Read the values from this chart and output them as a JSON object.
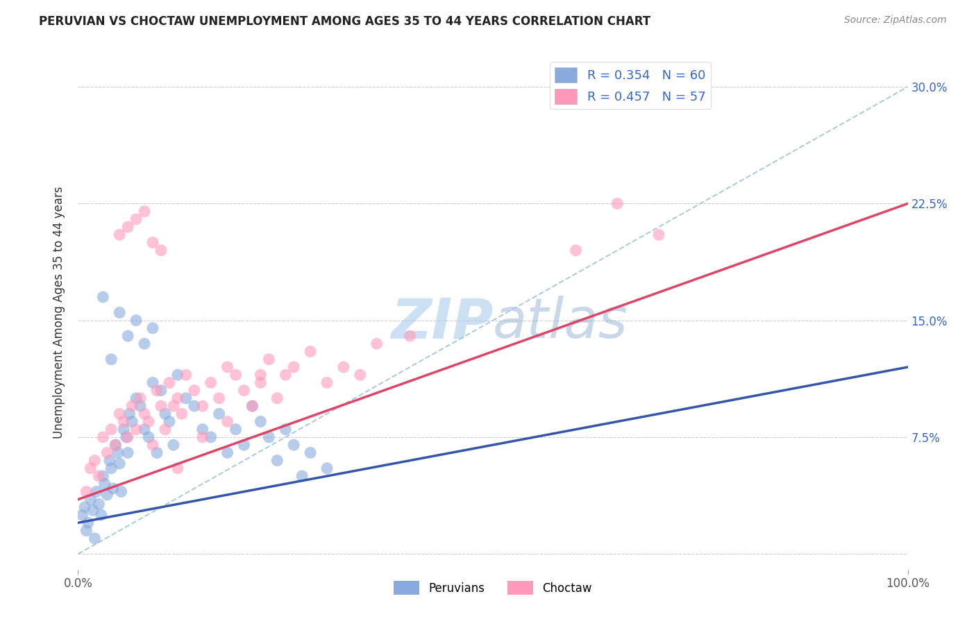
{
  "title": "PERUVIAN VS CHOCTAW UNEMPLOYMENT AMONG AGES 35 TO 44 YEARS CORRELATION CHART",
  "source": "Source: ZipAtlas.com",
  "ylabel": "Unemployment Among Ages 35 to 44 years",
  "xlim": [
    0,
    100
  ],
  "ylim": [
    -1,
    32
  ],
  "peruvian_color": "#88aadd",
  "choctaw_color": "#ff99bb",
  "peruvian_R": 0.354,
  "peruvian_N": 60,
  "choctaw_R": 0.457,
  "choctaw_N": 57,
  "peruvian_line_color": "#3355aa",
  "choctaw_line_color": "#dd4466",
  "diagonal_color": "#aaccdd",
  "watermark_color": "#aaccee",
  "legend_color": "#3366cc",
  "ytick_color": "#3366cc",
  "grid_color": "#cccccc",
  "peruvian_x": [
    0.5,
    0.8,
    1.0,
    1.2,
    1.5,
    1.8,
    2.0,
    2.2,
    2.5,
    2.8,
    3.0,
    3.2,
    3.5,
    3.8,
    4.0,
    4.2,
    4.5,
    4.8,
    5.0,
    5.2,
    5.5,
    5.8,
    6.0,
    6.2,
    6.5,
    7.0,
    7.5,
    8.0,
    8.5,
    9.0,
    9.5,
    10.0,
    10.5,
    11.0,
    11.5,
    12.0,
    13.0,
    14.0,
    15.0,
    16.0,
    17.0,
    18.0,
    19.0,
    20.0,
    21.0,
    22.0,
    23.0,
    24.0,
    25.0,
    26.0,
    27.0,
    28.0,
    30.0,
    4.0,
    6.0,
    8.0,
    5.0,
    7.0,
    3.0,
    9.0
  ],
  "peruvian_y": [
    2.5,
    3.0,
    1.5,
    2.0,
    3.5,
    2.8,
    1.0,
    4.0,
    3.2,
    2.5,
    5.0,
    4.5,
    3.8,
    6.0,
    5.5,
    4.2,
    7.0,
    6.5,
    5.8,
    4.0,
    8.0,
    7.5,
    6.5,
    9.0,
    8.5,
    10.0,
    9.5,
    8.0,
    7.5,
    11.0,
    6.5,
    10.5,
    9.0,
    8.5,
    7.0,
    11.5,
    10.0,
    9.5,
    8.0,
    7.5,
    9.0,
    6.5,
    8.0,
    7.0,
    9.5,
    8.5,
    7.5,
    6.0,
    8.0,
    7.0,
    5.0,
    6.5,
    5.5,
    12.5,
    14.0,
    13.5,
    15.5,
    15.0,
    16.5,
    14.5
  ],
  "choctaw_x": [
    1.0,
    1.5,
    2.0,
    2.5,
    3.0,
    3.5,
    4.0,
    4.5,
    5.0,
    5.5,
    6.0,
    6.5,
    7.0,
    7.5,
    8.0,
    8.5,
    9.0,
    9.5,
    10.0,
    10.5,
    11.0,
    11.5,
    12.0,
    12.5,
    13.0,
    14.0,
    15.0,
    16.0,
    17.0,
    18.0,
    19.0,
    20.0,
    21.0,
    22.0,
    23.0,
    24.0,
    25.0,
    26.0,
    28.0,
    30.0,
    32.0,
    34.0,
    36.0,
    40.0,
    5.0,
    6.0,
    7.0,
    8.0,
    9.0,
    10.0,
    12.0,
    15.0,
    18.0,
    22.0,
    60.0,
    65.0,
    70.0
  ],
  "choctaw_y": [
    4.0,
    5.5,
    6.0,
    5.0,
    7.5,
    6.5,
    8.0,
    7.0,
    9.0,
    8.5,
    7.5,
    9.5,
    8.0,
    10.0,
    9.0,
    8.5,
    7.0,
    10.5,
    9.5,
    8.0,
    11.0,
    9.5,
    10.0,
    9.0,
    11.5,
    10.5,
    9.5,
    11.0,
    10.0,
    12.0,
    11.5,
    10.5,
    9.5,
    11.0,
    12.5,
    10.0,
    11.5,
    12.0,
    13.0,
    11.0,
    12.0,
    11.5,
    13.5,
    14.0,
    20.5,
    21.0,
    21.5,
    22.0,
    20.0,
    19.5,
    5.5,
    7.5,
    8.5,
    11.5,
    19.5,
    22.5,
    20.5
  ],
  "peruvian_line": [
    0,
    100,
    2.0,
    12.0
  ],
  "choctaw_line": [
    0,
    100,
    3.5,
    22.5
  ],
  "diagonal_line": [
    0,
    100,
    0,
    30
  ]
}
